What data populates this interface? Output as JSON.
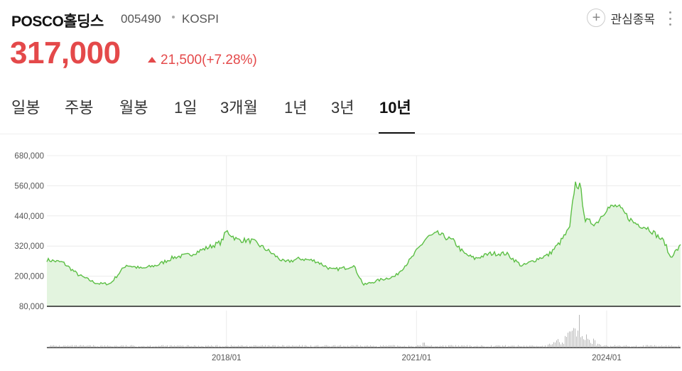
{
  "stock": {
    "name": "POSCO홀딩스",
    "code": "005490",
    "market": "KOSPI",
    "price": "317,000",
    "change": "21,500(+7.28%)",
    "direction": "up"
  },
  "actions": {
    "favorite_label": "관심종목"
  },
  "tabs": [
    {
      "label": "일봉",
      "active": false
    },
    {
      "label": "주봉",
      "active": false
    },
    {
      "label": "월봉",
      "active": false
    },
    {
      "label": "1일",
      "active": false
    },
    {
      "label": "3개월",
      "active": false
    },
    {
      "label": "1년",
      "active": false
    },
    {
      "label": "3년",
      "active": false
    },
    {
      "label": "10년",
      "active": true
    }
  ],
  "colors": {
    "up": "#e4494a",
    "line": "#5cbf45",
    "fill": "#e3f4df"
  },
  "chart_data": {
    "type": "area",
    "y_ticks": [
      "680,000",
      "560,000",
      "440,000",
      "320,000",
      "200,000",
      "80,000"
    ],
    "ylim": [
      80000,
      680000
    ],
    "x_ticks": [
      "2018/01",
      "2021/01",
      "2024/01"
    ],
    "x_range": [
      "2015-03",
      "2025-03"
    ],
    "grid": true,
    "series": [
      {
        "x": [
          "2015-03",
          "2015-06",
          "2015-09",
          "2015-12",
          "2016-01",
          "2016-03",
          "2016-06",
          "2016-09",
          "2016-12",
          "2017-03",
          "2017-06",
          "2017-09",
          "2017-12",
          "2018-01",
          "2018-03",
          "2018-06",
          "2018-09",
          "2018-12",
          "2019-03",
          "2019-06",
          "2019-09",
          "2019-12",
          "2020-01",
          "2020-03",
          "2020-06",
          "2020-09",
          "2020-12",
          "2021-01",
          "2021-03",
          "2021-05",
          "2021-08",
          "2021-10",
          "2021-12",
          "2022-03",
          "2022-06",
          "2022-09",
          "2022-12",
          "2023-02",
          "2023-04",
          "2023-06",
          "2023-07",
          "2023-08",
          "2023-09",
          "2023-11",
          "2024-01",
          "2024-03",
          "2024-06",
          "2024-09",
          "2024-12",
          "2025-01",
          "2025-03"
        ],
        "y": [
          265000,
          255000,
          205000,
          175000,
          170000,
          170000,
          245000,
          230000,
          245000,
          275000,
          285000,
          310000,
          335000,
          380000,
          345000,
          340000,
          300000,
          255000,
          270000,
          260000,
          225000,
          235000,
          245000,
          165000,
          185000,
          200000,
          270000,
          300000,
          355000,
          370000,
          340000,
          290000,
          270000,
          290000,
          290000,
          240000,
          270000,
          285000,
          330000,
          390000,
          570000,
          555000,
          420000,
          410000,
          470000,
          480000,
          415000,
          390000,
          335000,
          275000,
          320000
        ]
      }
    ],
    "volume_note": "volume bars (no axis labels shown)"
  }
}
